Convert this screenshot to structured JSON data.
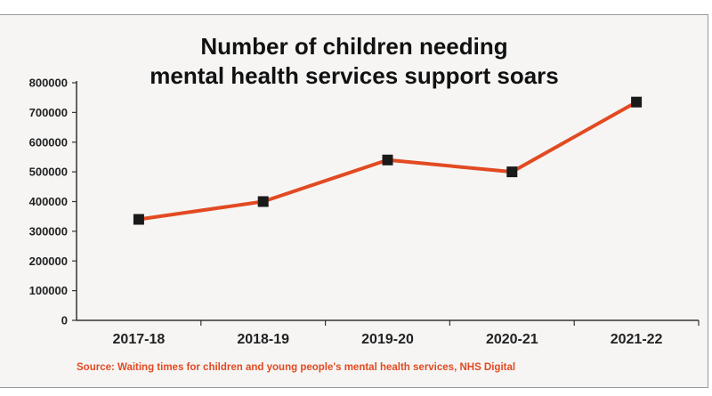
{
  "chart_data": {
    "type": "line",
    "title_lines": [
      "Number of children needing",
      "mental health services support soars"
    ],
    "categories": [
      "2017-18",
      "2018-19",
      "2019-20",
      "2020-21",
      "2021-22"
    ],
    "series": [
      {
        "values": [
          340000,
          400000,
          540000,
          500000,
          735000
        ]
      }
    ],
    "y_ticks": [
      "800000",
      "700000",
      "600000",
      "500000",
      "400000",
      "300000",
      "200000",
      "100000",
      "0"
    ],
    "ylim": [
      0,
      800000
    ],
    "xlabel": "",
    "ylabel": "",
    "grid": false,
    "legend": "none",
    "source": "Source: Waiting times for children and young people's mental health services, NHS Digital",
    "colors": {
      "line": "#e24a22",
      "marker": "#1a1a1a",
      "source": "#e24a22",
      "axis": "#333333"
    }
  }
}
